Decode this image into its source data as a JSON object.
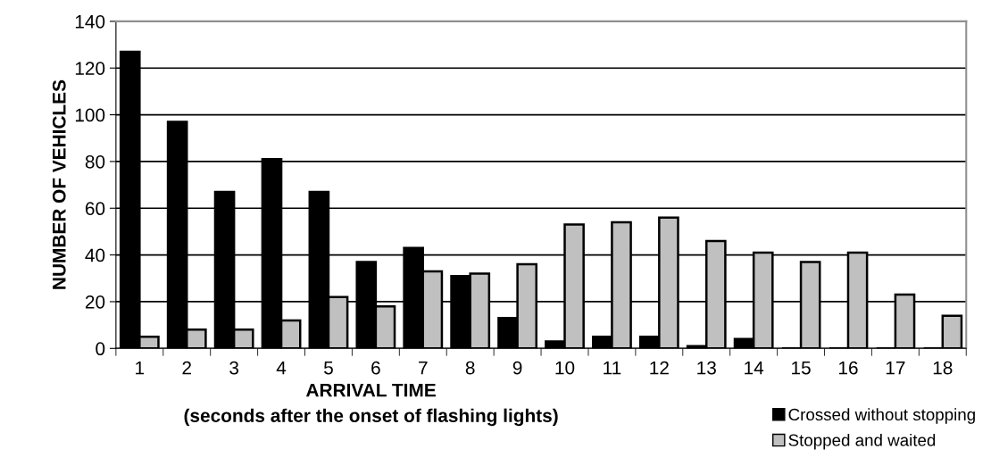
{
  "chart_data": {
    "type": "bar",
    "xlabel": "ARRIVAL TIME\n(seconds after the onset of flashing lights)",
    "ylabel": "NUMBER OF VEHICLES",
    "categories": [
      "1",
      "2",
      "3",
      "4",
      "5",
      "6",
      "7",
      "8",
      "9",
      "10",
      "11",
      "12",
      "13",
      "14",
      "15",
      "16",
      "17",
      "18"
    ],
    "series": [
      {
        "name": "Crossed without stopping",
        "color": "#000000",
        "values": [
          127,
          97,
          67,
          81,
          67,
          37,
          43,
          31,
          13,
          3,
          5,
          5,
          1,
          4,
          0,
          0,
          0,
          0
        ]
      },
      {
        "name": "Stopped and waited",
        "color": "#c0c0c0",
        "values": [
          5,
          8,
          8,
          12,
          22,
          18,
          33,
          32,
          36,
          53,
          54,
          56,
          46,
          41,
          37,
          41,
          23,
          14
        ]
      }
    ],
    "ylim": [
      0,
      140
    ],
    "yticks": [
      0,
      20,
      40,
      60,
      80,
      100,
      120,
      140
    ],
    "grid": "y",
    "legend": "bottom right"
  }
}
